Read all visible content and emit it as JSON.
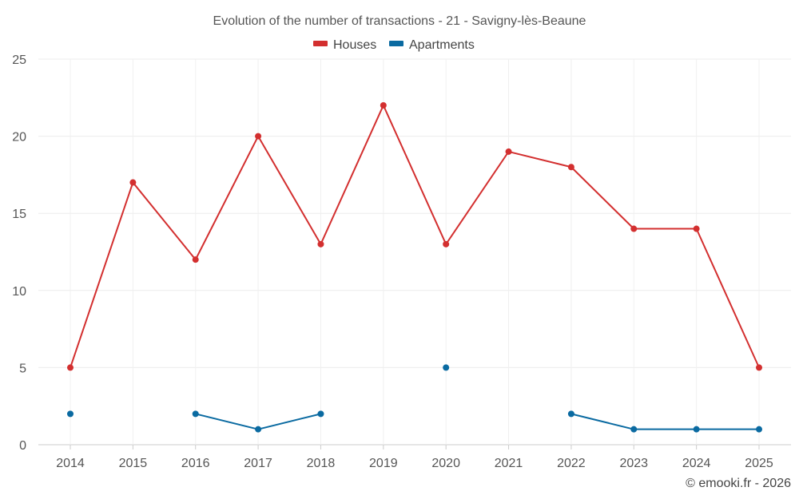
{
  "chart_data": {
    "type": "line",
    "title": "Evolution of the number of transactions - 21 - Savigny-lès-Beaune",
    "categories": [
      "2014",
      "2015",
      "2016",
      "2017",
      "2018",
      "2019",
      "2020",
      "2021",
      "2022",
      "2023",
      "2024",
      "2025"
    ],
    "series": [
      {
        "name": "Houses",
        "color": "#d32f2f",
        "values": [
          5,
          17,
          12,
          20,
          13,
          22,
          13,
          19,
          18,
          14,
          14,
          5
        ]
      },
      {
        "name": "Apartments",
        "color": "#0a6aa1",
        "values": [
          2,
          null,
          2,
          1,
          2,
          null,
          5,
          null,
          2,
          1,
          1,
          1
        ]
      }
    ],
    "y_ticks": [
      "0",
      "5",
      "10",
      "15",
      "20",
      "25"
    ],
    "ylim": [
      0,
      25
    ],
    "xlabel": "",
    "ylabel": "",
    "grid": true,
    "legend_position": "top-center"
  },
  "credit": "© emooki.fr - 2026"
}
